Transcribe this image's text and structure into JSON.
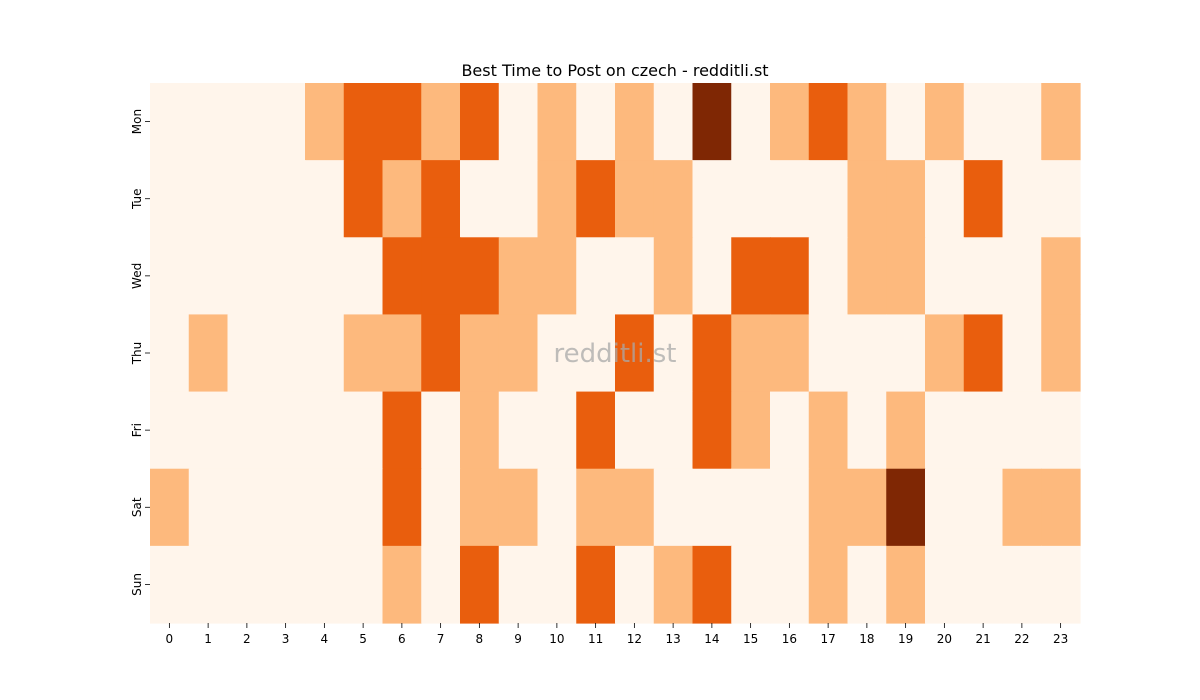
{
  "chart_data": {
    "type": "heatmap",
    "title": "Best Time to Post on czech - redditli.st",
    "watermark": "redditli.st",
    "xlabel": "",
    "ylabel": "",
    "x_categories": [
      "0",
      "1",
      "2",
      "3",
      "4",
      "5",
      "6",
      "7",
      "8",
      "9",
      "10",
      "11",
      "12",
      "13",
      "14",
      "15",
      "16",
      "17",
      "18",
      "19",
      "20",
      "21",
      "22",
      "23"
    ],
    "y_categories": [
      "Mon",
      "Tue",
      "Wed",
      "Thu",
      "Fri",
      "Sat",
      "Sun"
    ],
    "values": [
      [
        0,
        0,
        0,
        0,
        1,
        2,
        2,
        1,
        2,
        0,
        1,
        0,
        1,
        0,
        3,
        0,
        1,
        2,
        1,
        0,
        1,
        0,
        0,
        1
      ],
      [
        0,
        0,
        0,
        0,
        0,
        2,
        1,
        2,
        0,
        0,
        1,
        2,
        1,
        1,
        0,
        0,
        0,
        0,
        1,
        1,
        0,
        2,
        0,
        0
      ],
      [
        0,
        0,
        0,
        0,
        0,
        0,
        2,
        2,
        2,
        1,
        1,
        0,
        0,
        1,
        0,
        2,
        2,
        0,
        1,
        1,
        0,
        0,
        0,
        1
      ],
      [
        0,
        1,
        0,
        0,
        0,
        1,
        1,
        2,
        1,
        1,
        0,
        0,
        2,
        0,
        2,
        1,
        1,
        0,
        0,
        0,
        1,
        2,
        0,
        1
      ],
      [
        0,
        0,
        0,
        0,
        0,
        0,
        2,
        0,
        1,
        0,
        0,
        2,
        0,
        0,
        2,
        1,
        0,
        1,
        0,
        1,
        0,
        0,
        0,
        0
      ],
      [
        1,
        0,
        0,
        0,
        0,
        0,
        2,
        0,
        1,
        1,
        0,
        1,
        1,
        0,
        0,
        0,
        0,
        1,
        1,
        3,
        0,
        0,
        1,
        1
      ],
      [
        0,
        0,
        0,
        0,
        0,
        0,
        1,
        0,
        2,
        0,
        0,
        2,
        0,
        1,
        2,
        0,
        0,
        1,
        0,
        1,
        0,
        0,
        0,
        0
      ]
    ],
    "value_range": [
      0,
      3
    ],
    "colorscale": [
      "#fff5eb",
      "#fdb97d",
      "#e95e0d",
      "#7f2704"
    ],
    "colorbar": false,
    "grid": false
  }
}
